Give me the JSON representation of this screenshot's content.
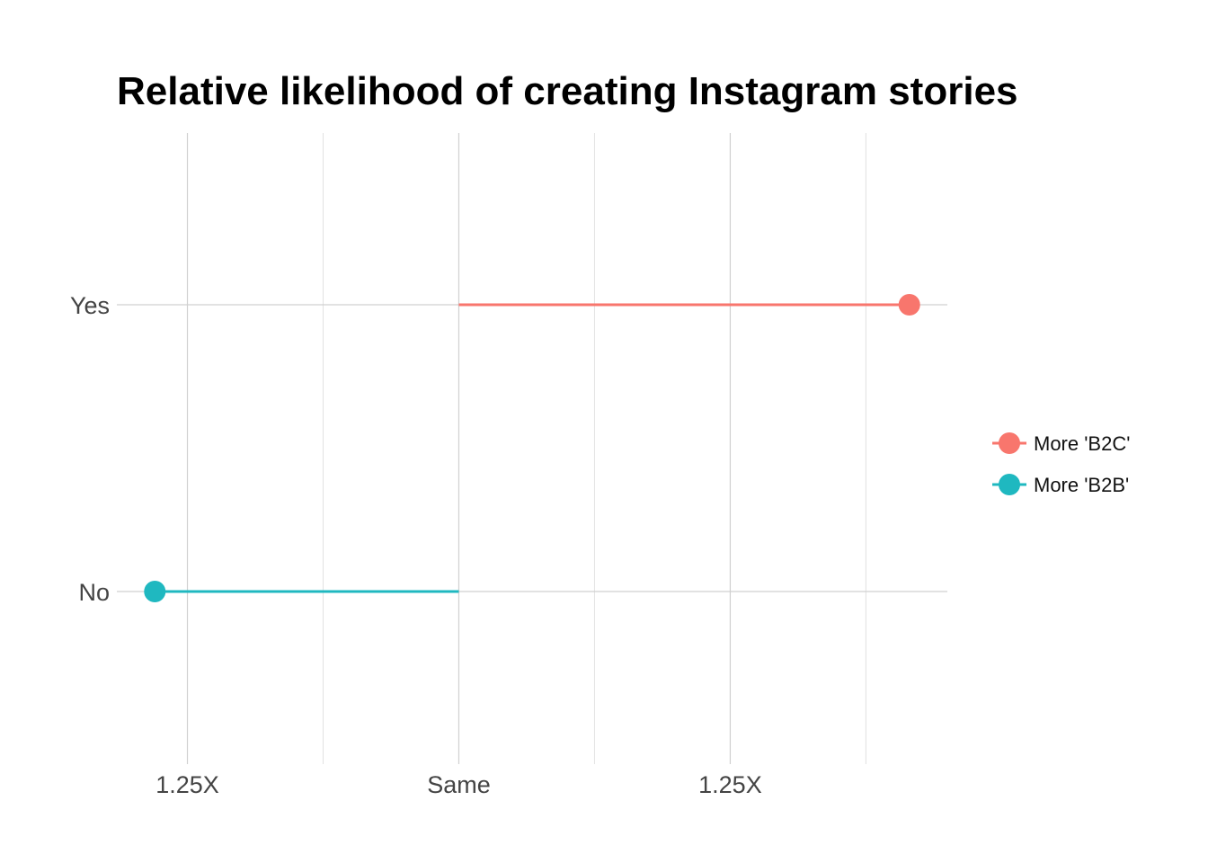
{
  "chart_data": {
    "type": "lollipop",
    "title": "Relative likelihood of creating Instagram stories",
    "xlabel": "",
    "ylabel": "",
    "categories": [
      "No",
      "Yes"
    ],
    "x_ticks": [
      {
        "value": -1,
        "label": "1.25X"
      },
      {
        "value": 0,
        "label": "Same"
      },
      {
        "value": 1,
        "label": "1.25X"
      }
    ],
    "xlim": [
      -1.26,
      1.8
    ],
    "baseline": 0,
    "grid": true,
    "legend_position": "right",
    "series": [
      {
        "name": "More 'B2C'",
        "color": "#F8766D",
        "category": "Yes",
        "value": 1.66
      },
      {
        "name": "More 'B2B'",
        "color": "#1FB8C0",
        "category": "No",
        "value": -1.12
      }
    ]
  }
}
